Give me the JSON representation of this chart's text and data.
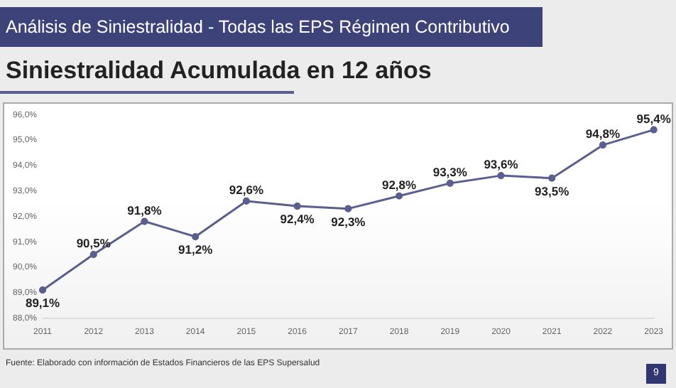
{
  "chart_data": {
    "type": "line",
    "title": "Análisis de Siniestralidad - Todas las EPS Régimen Contributivo",
    "subtitle": "Siniestralidad Acumulada en 12 años",
    "categories": [
      "2011",
      "2012",
      "2013",
      "2014",
      "2015",
      "2016",
      "2017",
      "2018",
      "2019",
      "2020",
      "2021",
      "2022",
      "2023"
    ],
    "series": [
      {
        "color": "#5a5f8f",
        "values": [
          89.1,
          90.5,
          91.8,
          91.2,
          92.6,
          92.4,
          92.3,
          92.8,
          93.3,
          93.6,
          93.5,
          94.8,
          95.4
        ],
        "value_labels": [
          "89,1%",
          "90,5%",
          "91,8%",
          "91,2%",
          "92,6%",
          "92,4%",
          "92,3%",
          "92,8%",
          "93,3%",
          "93,6%",
          "93,5%",
          "94,8%",
          "95,4%"
        ]
      }
    ],
    "ylim": [
      88,
      96
    ],
    "yticks": [
      {
        "value": 88,
        "label": "88,0%"
      },
      {
        "value": 89,
        "label": "89,0%"
      },
      {
        "value": 90,
        "label": "90,0%"
      },
      {
        "value": 91,
        "label": "91,0%"
      },
      {
        "value": 92,
        "label": "92,0%"
      },
      {
        "value": 93,
        "label": "93,0%"
      },
      {
        "value": 94,
        "label": "94,0%"
      },
      {
        "value": 95,
        "label": "95,0%"
      },
      {
        "value": 96,
        "label": "96,0%"
      }
    ],
    "grid": false,
    "legend": false,
    "marker": "circle",
    "line_style": "solid",
    "annotations": [
      "Fuente: Elaborado con información de Estados Financieros de las EPS Supersalud",
      "9"
    ]
  }
}
